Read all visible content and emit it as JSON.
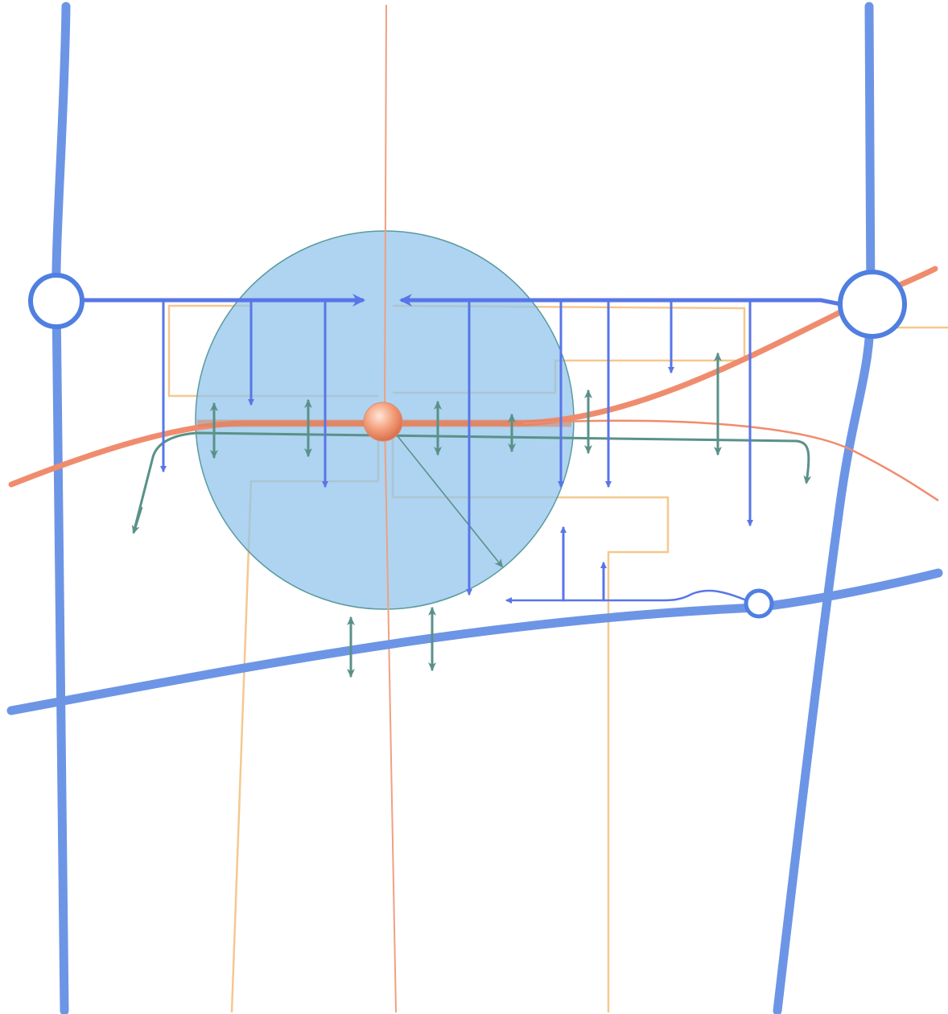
{
  "diagram": {
    "type": "site-circulation-diagram",
    "text_labels": [],
    "colors": {
      "background": "#ffffff",
      "road": "#6d95e6",
      "road_dark": "#4f7fe0",
      "arrow_blue": "#5876e8",
      "arrow_teal": "#5a9188",
      "rail": "#f08c6e",
      "rail_thin": "#f0a080",
      "parcel": "#f5c88f",
      "circle_fill": "#8fc4ec",
      "circle_stroke": "#5a9aa0",
      "station": "#f09870",
      "node_fill": "#ffffff"
    },
    "elements": {
      "highways": "regional-highways",
      "main_rail": "rail-line",
      "branch_rail": "branch-rail-line",
      "north_south_rail": "north-south-rail-line",
      "parcel_outlines": "parcel-boundaries",
      "walkshed": "station-walk-radius",
      "station": "transit-station-node",
      "interchanges": "highway-interchanges",
      "access_arrows": "vehicle-access-arrows",
      "pedestrian_arrows": "pedestrian-crossing-arrows"
    }
  }
}
